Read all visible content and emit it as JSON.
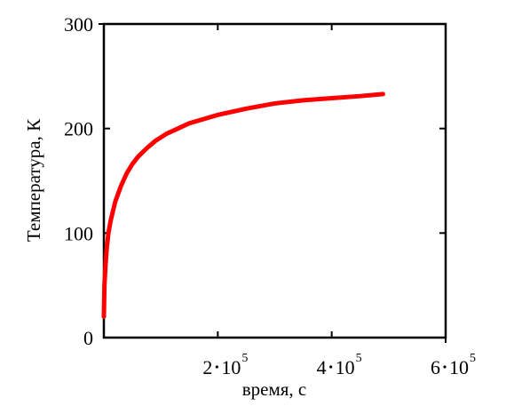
{
  "chart_data": {
    "type": "line",
    "xlabel": "время, с",
    "ylabel": "Температура, К",
    "xlim": [
      0,
      600000
    ],
    "ylim": [
      0,
      300
    ],
    "grid": false,
    "x_ticks": [
      {
        "value": 200000,
        "mantissa": "2",
        "exponent": "5"
      },
      {
        "value": 400000,
        "mantissa": "4",
        "exponent": "5"
      },
      {
        "value": 600000,
        "mantissa": "6",
        "exponent": "5"
      }
    ],
    "y_ticks": [
      {
        "value": 0,
        "label": "0"
      },
      {
        "value": 100,
        "label": "100"
      },
      {
        "value": 200,
        "label": "200"
      },
      {
        "value": 300,
        "label": "300"
      }
    ],
    "series": [
      {
        "color": "#ff0000",
        "points": [
          [
            0,
            20
          ],
          [
            1000,
            50
          ],
          [
            3000,
            70
          ],
          [
            5000,
            85
          ],
          [
            8000,
            100
          ],
          [
            12000,
            112
          ],
          [
            20000,
            130
          ],
          [
            30000,
            145
          ],
          [
            40000,
            157
          ],
          [
            50000,
            166
          ],
          [
            60000,
            173
          ],
          [
            75000,
            181
          ],
          [
            90000,
            188
          ],
          [
            110000,
            195
          ],
          [
            130000,
            200
          ],
          [
            150000,
            205
          ],
          [
            175000,
            209
          ],
          [
            200000,
            213
          ],
          [
            250000,
            219
          ],
          [
            300000,
            224
          ],
          [
            350000,
            227
          ],
          [
            400000,
            229
          ],
          [
            450000,
            231
          ],
          [
            490000,
            233
          ]
        ]
      }
    ]
  }
}
